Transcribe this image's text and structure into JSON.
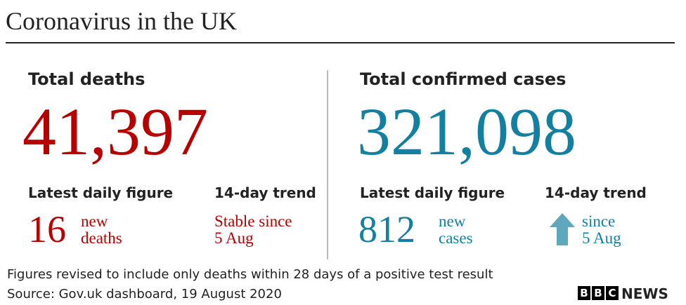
{
  "title": "Coronavirus in the UK",
  "deaths": {
    "heading": "Total deaths",
    "total": "41,397",
    "daily_heading": "Latest daily figure",
    "daily": "16",
    "daily_unit": [
      "new",
      "deaths"
    ],
    "trend_heading": "14-day trend",
    "trend": [
      "Stable since",
      "5 Aug"
    ]
  },
  "cases": {
    "heading": "Total confirmed cases",
    "total": "321,098",
    "daily_heading": "Latest daily figure",
    "daily": "812",
    "daily_unit": [
      "new",
      "cases"
    ],
    "trend_heading": "14-day trend",
    "trend": [
      "since",
      "5 Aug"
    ]
  },
  "footer": {
    "note": "Figures revised to include only deaths within 28 days of a positive test result",
    "source": "Source: Gov.uk dashboard, 19 August 2020"
  },
  "logo": {
    "letters": [
      "B",
      "B",
      "C"
    ],
    "word": "NEWS"
  }
}
